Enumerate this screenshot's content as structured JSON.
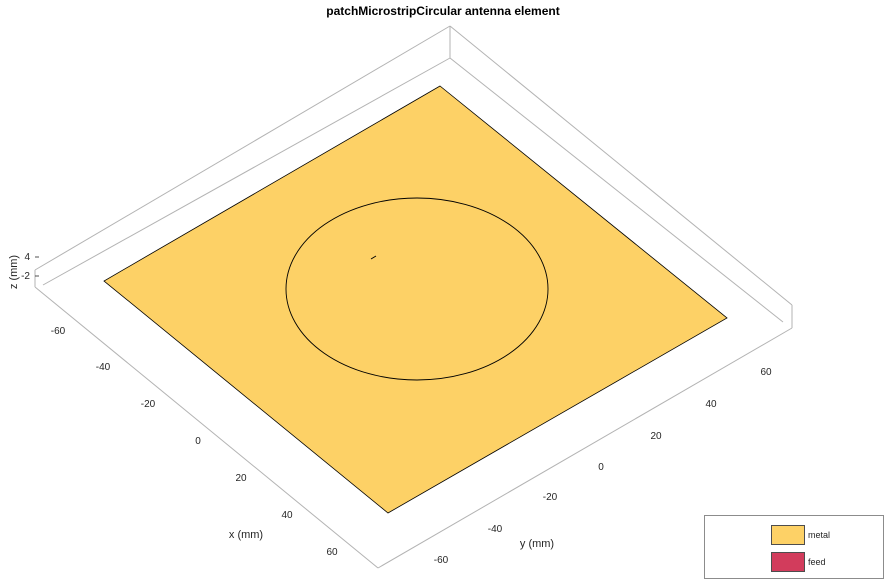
{
  "title": "patchMicrostripCircular antenna element",
  "axes": {
    "x_label": "x (mm)",
    "y_label": "y (mm)",
    "z_label": "z (mm)",
    "x_ticks": [
      "-60",
      "-40",
      "-20",
      "0",
      "20",
      "40",
      "60"
    ],
    "y_ticks": [
      "-60",
      "-40",
      "-20",
      "0",
      "20",
      "40",
      "60"
    ],
    "z_ticks": [
      "4",
      "-2"
    ]
  },
  "legend": {
    "items": [
      {
        "label": "metal",
        "color": "#fdd166"
      },
      {
        "label": "feed",
        "color": "#d23c5c"
      }
    ]
  },
  "colors": {
    "metal": "#fdd166",
    "feed": "#d23c5c",
    "box_line": "#b3b3b3",
    "outline": "#000000"
  }
}
